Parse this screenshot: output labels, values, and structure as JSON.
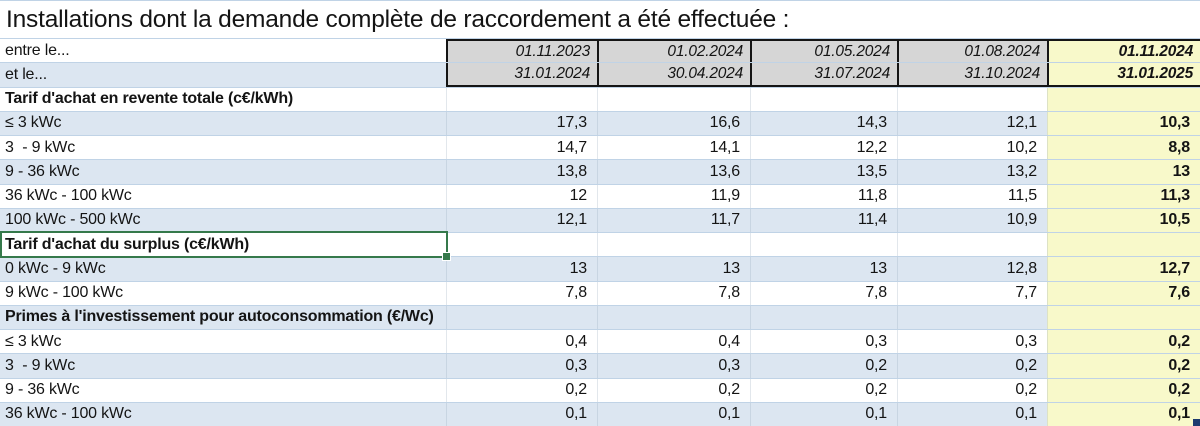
{
  "title": "Installations dont la demande complète de raccordement a été effectuée :",
  "period_rows": {
    "from_label": "entre le...",
    "to_label": "et le..."
  },
  "periods": [
    {
      "from": "01.11.2023",
      "to": "31.01.2024",
      "highlight": false
    },
    {
      "from": "01.02.2024",
      "to": "30.04.2024",
      "highlight": false
    },
    {
      "from": "01.05.2024",
      "to": "31.07.2024",
      "highlight": false
    },
    {
      "from": "01.08.2024",
      "to": "31.10.2024",
      "highlight": false
    },
    {
      "from": "01.11.2024",
      "to": "31.01.2025",
      "highlight": true
    }
  ],
  "sections": [
    {
      "header": "Tarif d'achat en revente totale (c€/kWh)",
      "selected": false,
      "rows": [
        {
          "label": "≤ 3 kWc",
          "values": [
            "17,3",
            "16,6",
            "14,3",
            "12,1",
            "10,3"
          ]
        },
        {
          "label": "3  - 9 kWc",
          "values": [
            "14,7",
            "14,1",
            "12,2",
            "10,2",
            "8,8"
          ]
        },
        {
          "label": "9 - 36 kWc",
          "values": [
            "13,8",
            "13,6",
            "13,5",
            "13,2",
            "13"
          ]
        },
        {
          "label": "36 kWc - 100 kWc",
          "values": [
            "12",
            "11,9",
            "11,8",
            "11,5",
            "11,3"
          ]
        },
        {
          "label": "100 kWc - 500 kWc",
          "values": [
            "12,1",
            "11,7",
            "11,4",
            "10,9",
            "10,5"
          ]
        }
      ]
    },
    {
      "header": "Tarif d'achat du surplus (c€/kWh)",
      "selected": true,
      "rows": [
        {
          "label": "0 kWc - 9 kWc",
          "values": [
            "13",
            "13",
            "13",
            "12,8",
            "12,7"
          ]
        },
        {
          "label": "9 kWc - 100 kWc",
          "values": [
            "7,8",
            "7,8",
            "7,8",
            "7,7",
            "7,6"
          ]
        }
      ]
    },
    {
      "header": "Primes à l'investissement pour autoconsommation (€/Wc)",
      "selected": false,
      "rows": [
        {
          "label": "≤ 3 kWc",
          "values": [
            "0,4",
            "0,4",
            "0,3",
            "0,3",
            "0,2"
          ]
        },
        {
          "label": "3  - 9 kWc",
          "values": [
            "0,3",
            "0,3",
            "0,2",
            "0,2",
            "0,2"
          ]
        },
        {
          "label": "9 - 36 kWc",
          "values": [
            "0,2",
            "0,2",
            "0,2",
            "0,2",
            "0,2"
          ]
        },
        {
          "label": "36 kWc - 100 kWc",
          "values": [
            "0,1",
            "0,1",
            "0,1",
            "0,1",
            "0,1"
          ]
        }
      ]
    }
  ],
  "colors": {
    "row_stripe_blue": "#dce6f1",
    "highlight_column_yellow": "#f8f9ca",
    "period_header_gray": "#d6d6d6",
    "gridline_blue": "#c0d3e6",
    "selection_green": "#35794b",
    "corner_marker_navy": "#1d3b6e",
    "border_black": "#151515"
  }
}
